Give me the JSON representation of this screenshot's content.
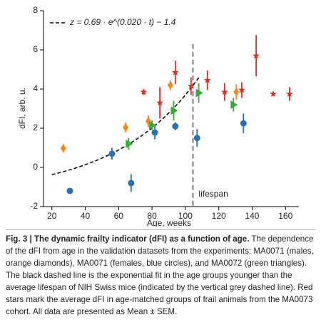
{
  "chart_data": {
    "type": "scatter",
    "xlabel": "Age, weeks",
    "ylabel": "dFI, arb. u.",
    "xlim": [
      15,
      168
    ],
    "ylim": [
      -2,
      8
    ],
    "xticks": [
      20,
      40,
      60,
      80,
      100,
      120,
      140,
      160
    ],
    "yticks": [
      -2,
      0,
      2,
      4,
      6,
      8
    ],
    "fit": {
      "label": "z = 0.69 · e^(0.020 · t) − 1.4",
      "a": 0.69,
      "b": 0.02,
      "c": -1.4,
      "x_range": [
        20,
        108
      ],
      "color": "#000000"
    },
    "lifespan": {
      "label": "lifespan",
      "x": 104.5,
      "color": "#999999"
    },
    "series": [
      {
        "name": "MA0071 (males)",
        "marker": "diamond",
        "color": "#f28a1e",
        "x": [
          26.9,
          64.2,
          77.8,
          91,
          130.5
        ],
        "values": [
          0.98,
          2.04,
          2.36,
          4.2,
          3.85
        ],
        "errors": [
          0.2,
          0.25,
          0.3,
          0.25,
          0.4
        ]
      },
      {
        "name": "MA0071 (females)",
        "marker": "circle",
        "color": "#2a6fb0",
        "x": [
          30.8,
          56,
          67.5,
          81.7,
          94,
          107,
          134.8
        ],
        "values": [
          -1.2,
          0.7,
          -0.8,
          1.78,
          2.1,
          1.5,
          2.25
        ],
        "errors": [
          0,
          0.3,
          0.45,
          0.35,
          0.2,
          0.45,
          0.5
        ]
      },
      {
        "name": "MA0072",
        "marker": "triangle",
        "color": "#3aa83a",
        "x": [
          66,
          80,
          93,
          108,
          128.8
        ],
        "values": [
          1.2,
          2.15,
          2.9,
          3.8,
          3.2
        ],
        "errors": [
          0.3,
          0.25,
          0.5,
          0.5,
          0.35
        ]
      },
      {
        "name": "MA0073",
        "marker": "star",
        "color": "#d6312b",
        "x": [
          75,
          84.7,
          94,
          103.4,
          113.2,
          123.5,
          133.8,
          142.4,
          152.6,
          162.4
        ],
        "values": [
          3.85,
          3.3,
          4.85,
          4.15,
          4.45,
          3.85,
          3.95,
          5.7,
          3.75,
          3.75
        ],
        "errors": [
          0.15,
          0.8,
          0.6,
          0.45,
          0.5,
          0.45,
          0.4,
          1.05,
          0.1,
          0.35
        ]
      }
    ]
  },
  "caption": {
    "bold": "Fig. 3 | The dynamic frailty indicator (dFI) as a function of age.",
    "text": "The dependence of the dFI from age in the validation datasets from the experiments: MA0071 (males, orange diamonds), MA0071 (females, blue circles), and MA0072 (green triangles). The black dashed line is the exponential fit in the age groups younger than the average lifespan of NIH Swiss mice (indicated by the vertical grey dashed line). Red stars mark the average dFI in age-matched groups of frail animals from the MA0073 cohort. All data are presented as Mean ± SEM."
  }
}
